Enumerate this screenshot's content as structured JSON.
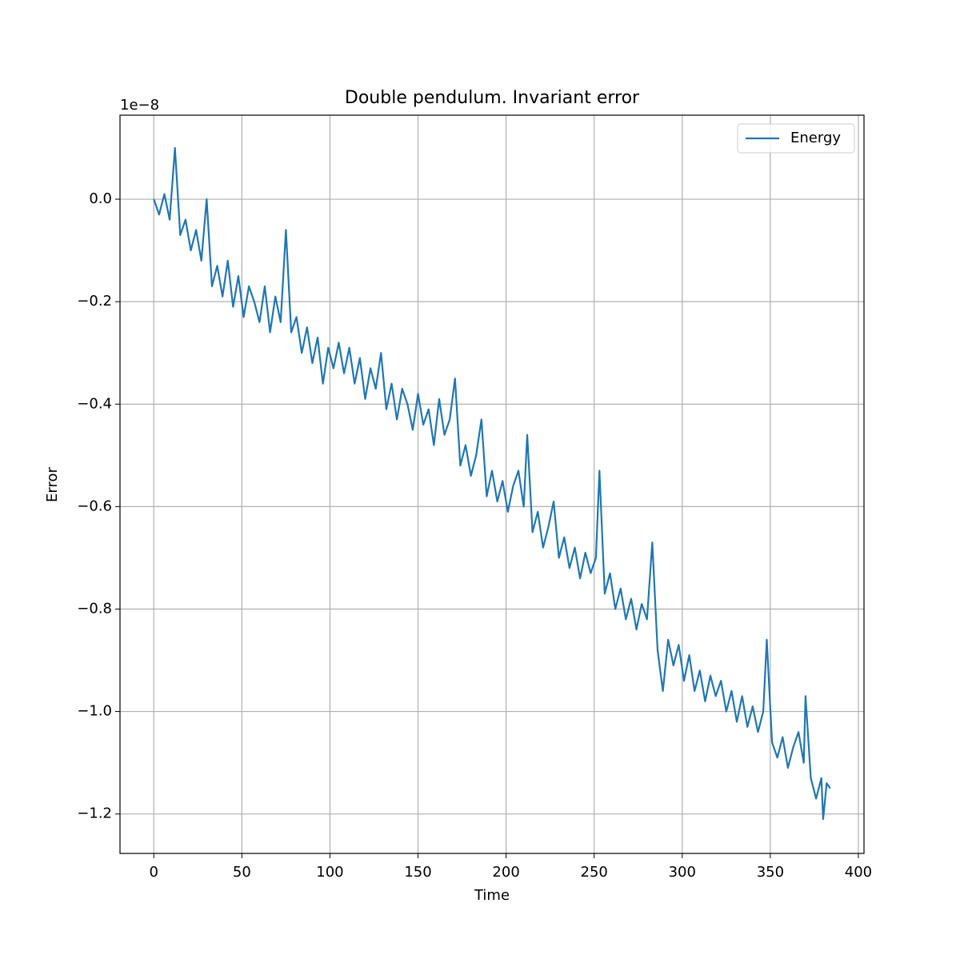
{
  "chart_data": {
    "type": "line",
    "title": "Double pendulum. Invariant error",
    "x_label": "Time",
    "y_label": "Error",
    "y_offset_text": "1e−8",
    "x": [
      0,
      3,
      6,
      9,
      12,
      15,
      18,
      21,
      24,
      27,
      30,
      33,
      36,
      39,
      42,
      45,
      48,
      51,
      54,
      57,
      60,
      63,
      66,
      69,
      72,
      75,
      78,
      81,
      84,
      87,
      90,
      93,
      96,
      99,
      102,
      105,
      108,
      111,
      114,
      117,
      120,
      123,
      126,
      129,
      132,
      135,
      138,
      141,
      144,
      147,
      150,
      153,
      156,
      159,
      162,
      165,
      168,
      171,
      174,
      177,
      180,
      183,
      186,
      189,
      192,
      195,
      198,
      201,
      204,
      207,
      210,
      212,
      215,
      218,
      221,
      224,
      227,
      230,
      233,
      236,
      239,
      242,
      245,
      248,
      251,
      253,
      256,
      259,
      262,
      265,
      268,
      271,
      274,
      277,
      280,
      283,
      286,
      289,
      292,
      295,
      298,
      301,
      304,
      307,
      310,
      313,
      316,
      319,
      322,
      325,
      328,
      331,
      334,
      337,
      340,
      343,
      346,
      348,
      351,
      354,
      357,
      360,
      363,
      366,
      369,
      370,
      373,
      376,
      379,
      380,
      382,
      384
    ],
    "series": [
      {
        "name": "Energy",
        "color": "#1f77b4",
        "values": [
          0.0,
          -0.03,
          0.01,
          -0.04,
          0.1,
          -0.07,
          -0.04,
          -0.1,
          -0.06,
          -0.12,
          0.0,
          -0.17,
          -0.13,
          -0.19,
          -0.12,
          -0.21,
          -0.15,
          -0.23,
          -0.17,
          -0.2,
          -0.24,
          -0.17,
          -0.26,
          -0.19,
          -0.24,
          -0.06,
          -0.26,
          -0.23,
          -0.3,
          -0.25,
          -0.32,
          -0.27,
          -0.36,
          -0.29,
          -0.33,
          -0.28,
          -0.34,
          -0.29,
          -0.36,
          -0.31,
          -0.39,
          -0.33,
          -0.37,
          -0.3,
          -0.41,
          -0.36,
          -0.43,
          -0.37,
          -0.4,
          -0.45,
          -0.38,
          -0.44,
          -0.41,
          -0.48,
          -0.39,
          -0.46,
          -0.43,
          -0.35,
          -0.52,
          -0.48,
          -0.54,
          -0.5,
          -0.43,
          -0.58,
          -0.53,
          -0.59,
          -0.55,
          -0.61,
          -0.56,
          -0.53,
          -0.6,
          -0.46,
          -0.65,
          -0.61,
          -0.68,
          -0.64,
          -0.59,
          -0.7,
          -0.66,
          -0.72,
          -0.68,
          -0.74,
          -0.69,
          -0.73,
          -0.7,
          -0.53,
          -0.77,
          -0.73,
          -0.8,
          -0.76,
          -0.82,
          -0.78,
          -0.84,
          -0.79,
          -0.82,
          -0.67,
          -0.88,
          -0.96,
          -0.86,
          -0.91,
          -0.87,
          -0.94,
          -0.89,
          -0.96,
          -0.92,
          -0.98,
          -0.93,
          -0.97,
          -0.94,
          -1.0,
          -0.96,
          -1.02,
          -0.97,
          -1.03,
          -0.99,
          -1.04,
          -1.0,
          -0.86,
          -1.06,
          -1.09,
          -1.05,
          -1.11,
          -1.07,
          -1.04,
          -1.1,
          -0.97,
          -1.13,
          -1.17,
          -1.13,
          -1.21,
          -1.14,
          -1.15
        ]
      }
    ],
    "xlim": [
      -19.2,
      403.2
    ],
    "ylim": [
      -1.277,
      0.164
    ],
    "xticks": [
      0,
      50,
      100,
      150,
      200,
      250,
      300,
      350,
      400
    ],
    "yticks": [
      {
        "value": 0,
        "label": "0.0"
      },
      {
        "value": -0.2,
        "label": "−0.2"
      },
      {
        "value": -0.4,
        "label": "−0.4"
      },
      {
        "value": -0.6,
        "label": "−0.6"
      },
      {
        "value": -0.8,
        "label": "−0.8"
      },
      {
        "value": -1.0,
        "label": "−1.0"
      },
      {
        "value": -1.2,
        "label": "−1.2"
      }
    ],
    "grid": true,
    "legend": "upper right"
  }
}
